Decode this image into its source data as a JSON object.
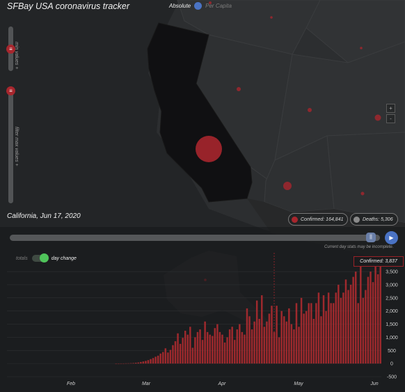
{
  "app": {
    "title": "SFBay USA coronavirus tracker",
    "mode_absolute": "Absolute",
    "mode_per_capita": "Per Capita"
  },
  "sliders": {
    "min_label": "min values +",
    "max_label": "filter max values +"
  },
  "zoom": {
    "in": "+",
    "out": "-"
  },
  "region": {
    "label": "California, Jun 17, 2020",
    "confirmed": "Confirmed: 164,841",
    "deaths": "Deaths: 5,306"
  },
  "timeline": {
    "note": "Current day stats may be incomplete.",
    "position": 0.987
  },
  "chart_toggle": {
    "totals": "totals",
    "day_change": "day change"
  },
  "tooltip": {
    "confirmed": "Confirmed: 3,837"
  },
  "colors": {
    "accent": "#a7262d",
    "bar": "#b52b30",
    "blue": "#4a73c4",
    "green": "#4fc35a"
  },
  "chart_data": {
    "type": "bar",
    "title": "",
    "xlabel": "",
    "ylabel": "",
    "x_ticks": [
      "Feb",
      "Mar",
      "Apr",
      "May",
      "Jun"
    ],
    "y_ticks": [
      "3,500",
      "3,000",
      "2,500",
      "2,000",
      "1,500",
      "1,000",
      "500",
      "0",
      "-500"
    ],
    "ylim": [
      -500,
      3900
    ],
    "series": [
      {
        "values": [
          0,
          0,
          0,
          0,
          0,
          0,
          0,
          0,
          0,
          0,
          0,
          0,
          0,
          0,
          0,
          0,
          0,
          0,
          0,
          0,
          0,
          0,
          0,
          0,
          0,
          0,
          0,
          0,
          0,
          0,
          0,
          0,
          0,
          0,
          0,
          0,
          0,
          0,
          0,
          0,
          0,
          2,
          3,
          5,
          5,
          8,
          10,
          15,
          20,
          30,
          40,
          60,
          80,
          100,
          130,
          170,
          210,
          260,
          300,
          380,
          440,
          580,
          420,
          520,
          700,
          850,
          1150,
          750,
          980,
          1250,
          1100,
          1400,
          600,
          1000,
          1200,
          1300,
          900,
          1600,
          1200,
          1100,
          1050,
          1350,
          1500,
          1200,
          1100,
          800,
          1000,
          1300,
          1400,
          900,
          1300,
          1500,
          1200,
          1100,
          2100,
          1800,
          1300,
          1600,
          2400,
          1700,
          2600,
          1400,
          1600,
          1900,
          2200,
          1200,
          2200,
          1000,
          2000,
          1800,
          1600,
          2100,
          1500,
          1300,
          2300,
          1400,
          2500,
          1900,
          2000,
          2300,
          2300,
          1700,
          2300,
          2700,
          1800,
          2600,
          2000,
          2700,
          2300,
          2300,
          2700,
          3000,
          2500,
          2700,
          3200,
          2800,
          3000,
          3300,
          3500,
          2300,
          3700,
          2500,
          2800,
          3300,
          3500,
          3100,
          3700,
          3400,
          3837
        ]
      }
    ]
  }
}
